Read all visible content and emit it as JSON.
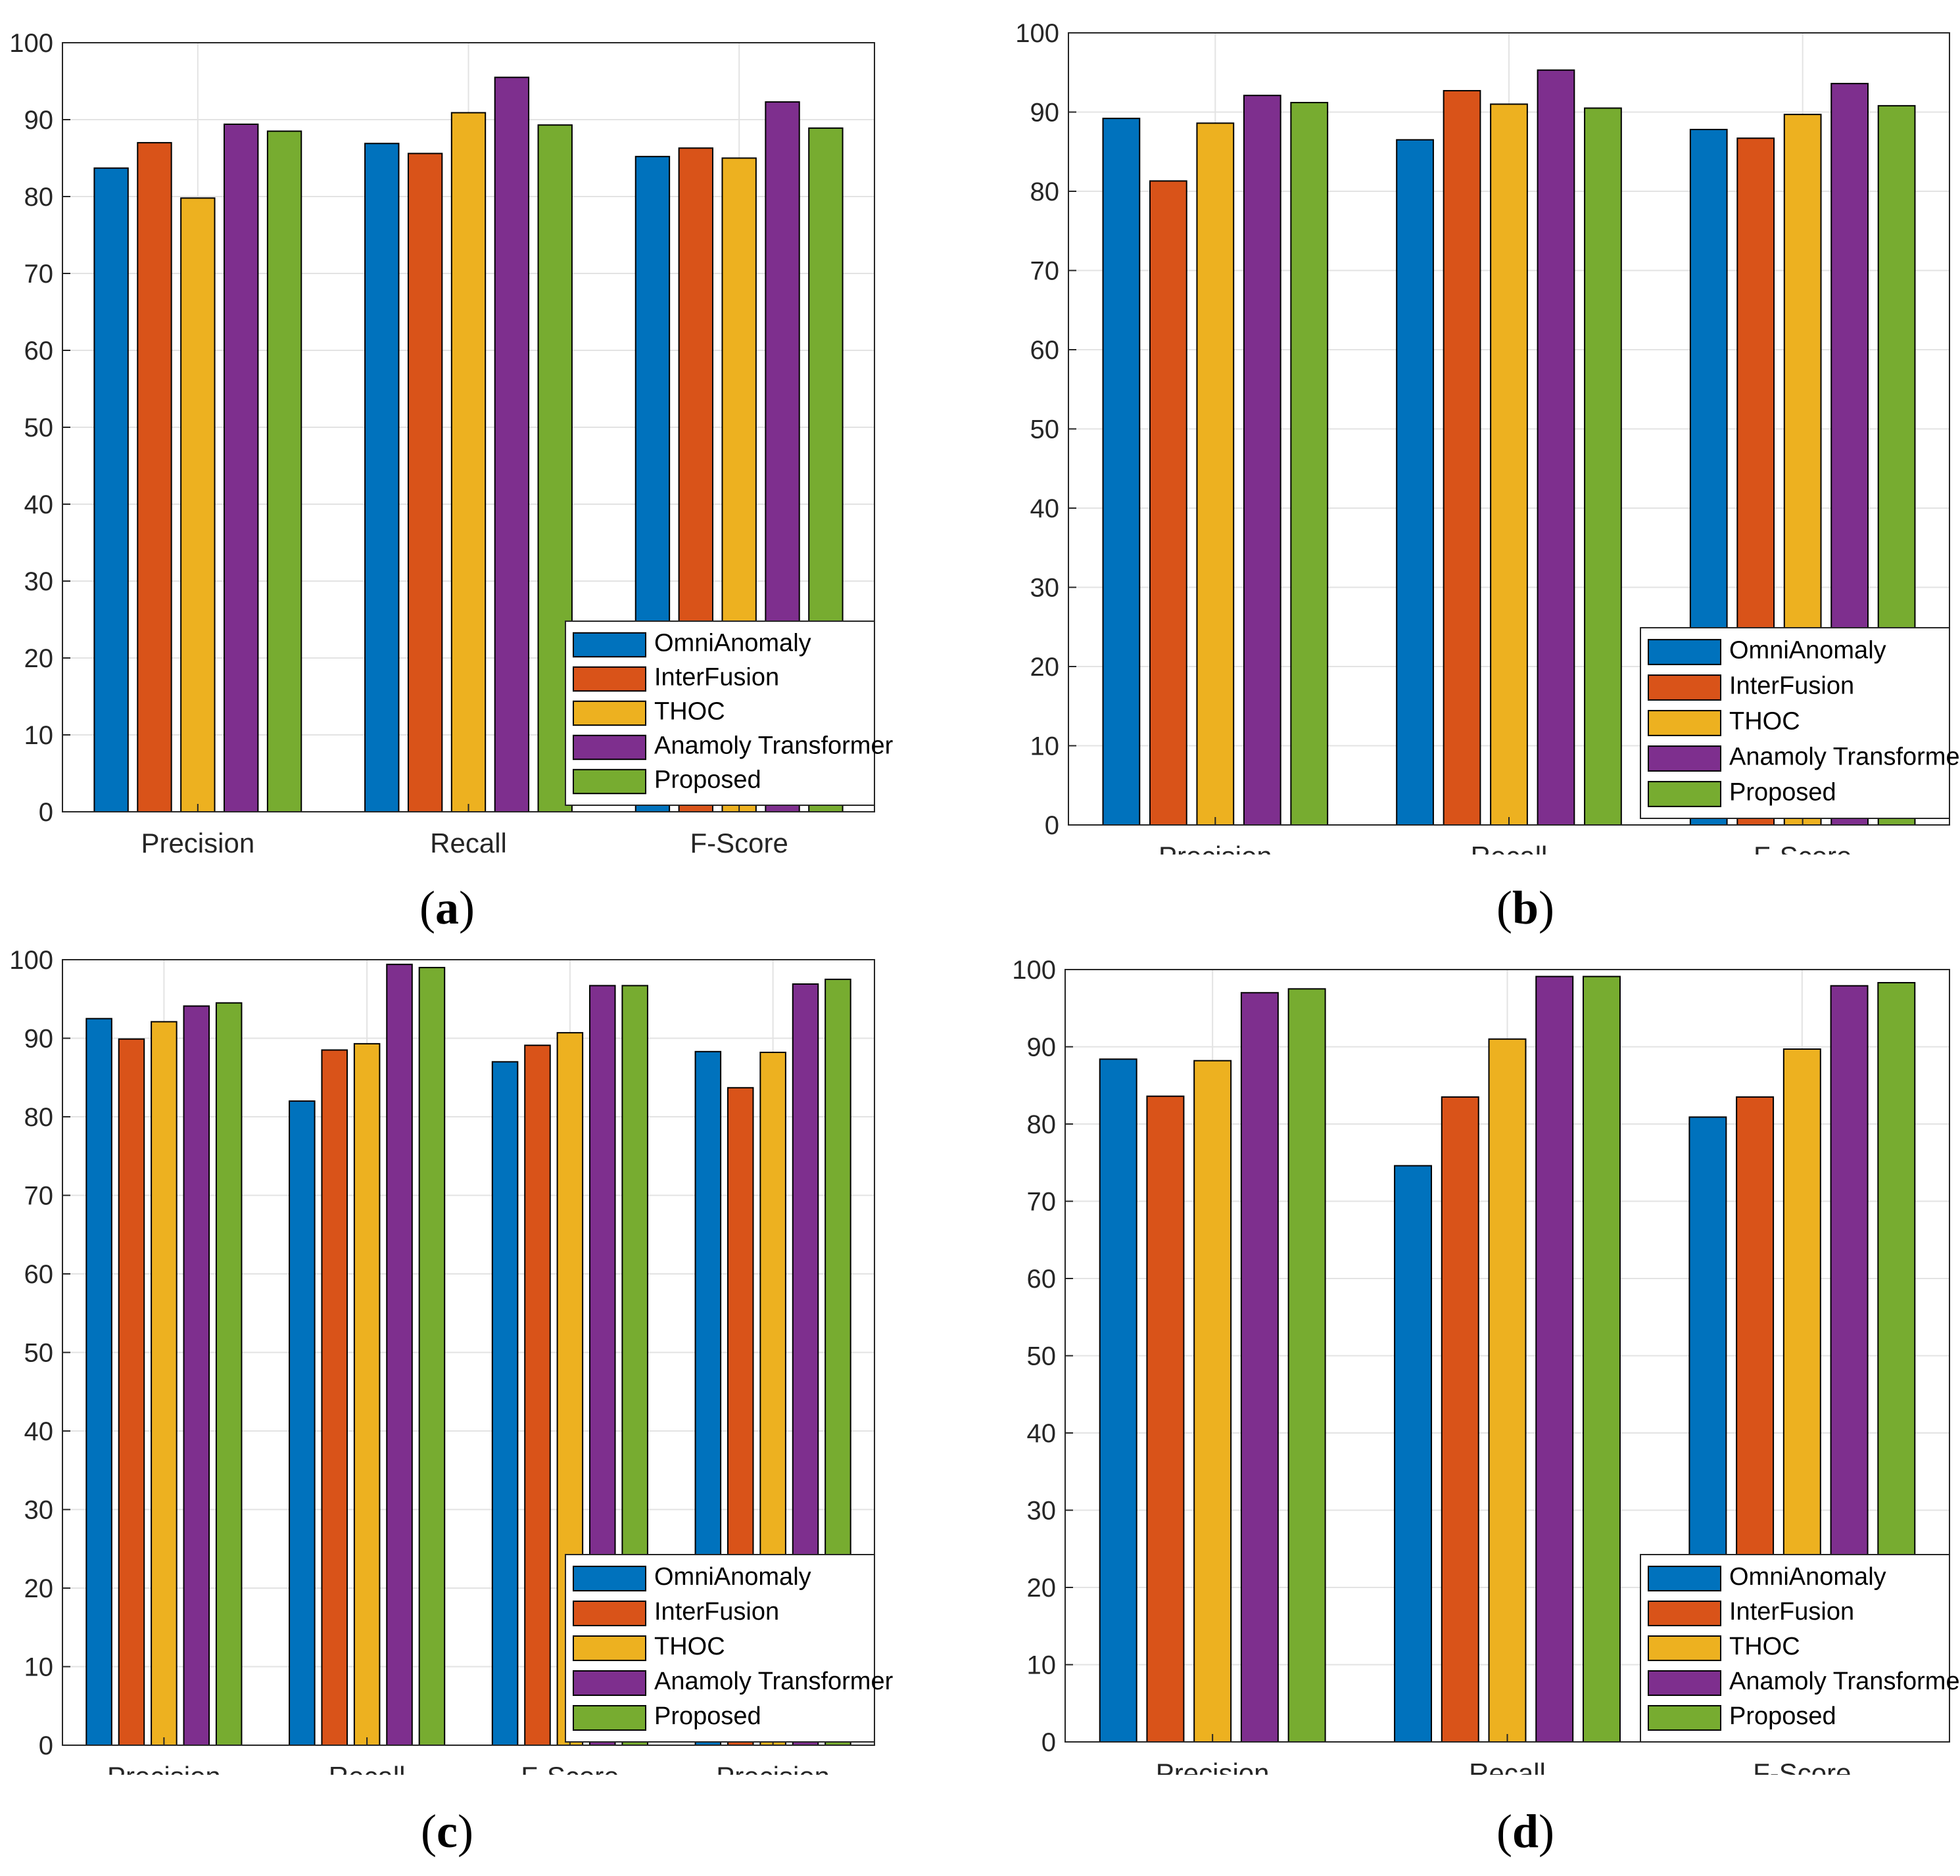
{
  "legend_entries": [
    "OmniAnomaly",
    "InterFusion",
    "THOC",
    "Anamoly Transformer",
    "Proposed"
  ],
  "colors": {
    "OmniAnomaly": "#0072BD",
    "InterFusion": "#D95319",
    "THOC": "#EDB120",
    "Anamoly Transformer": "#7E2F8E",
    "Proposed": "#77AC30"
  },
  "chart_data": [
    {
      "panel_label": "a",
      "type": "bar",
      "title": "",
      "xlabel": "",
      "ylabel": "",
      "ylim": [
        0,
        100
      ],
      "yticks": [
        0,
        10,
        20,
        30,
        40,
        50,
        60,
        70,
        80,
        90,
        100
      ],
      "grid": true,
      "legend_position": "bottom-right",
      "categories": [
        "Precision",
        "Recall",
        "F-Score"
      ],
      "series": [
        {
          "name": "OmniAnomaly",
          "values": [
            83.7,
            86.9,
            85.2
          ]
        },
        {
          "name": "InterFusion",
          "values": [
            87.0,
            85.6,
            86.3
          ]
        },
        {
          "name": "THOC",
          "values": [
            79.8,
            90.9,
            85.0
          ]
        },
        {
          "name": "Anamoly Transformer",
          "values": [
            89.4,
            95.5,
            92.3
          ]
        },
        {
          "name": "Proposed",
          "values": [
            88.5,
            89.3,
            88.9
          ]
        }
      ]
    },
    {
      "panel_label": "b",
      "type": "bar",
      "title": "",
      "xlabel": "",
      "ylabel": "",
      "ylim": [
        0,
        100
      ],
      "yticks": [
        0,
        10,
        20,
        30,
        40,
        50,
        60,
        70,
        80,
        90,
        100
      ],
      "grid": true,
      "legend_position": "bottom-right",
      "categories": [
        "Precision",
        "Recall",
        "F-Score"
      ],
      "series": [
        {
          "name": "OmniAnomaly",
          "values": [
            89.2,
            86.5,
            87.8
          ]
        },
        {
          "name": "InterFusion",
          "values": [
            81.3,
            92.7,
            86.7
          ]
        },
        {
          "name": "THOC",
          "values": [
            88.6,
            91.0,
            89.7
          ]
        },
        {
          "name": "Anamoly Transformer",
          "values": [
            92.1,
            95.3,
            93.6
          ]
        },
        {
          "name": "Proposed",
          "values": [
            91.2,
            90.5,
            90.8
          ]
        }
      ]
    },
    {
      "panel_label": "c",
      "type": "bar",
      "title": "",
      "xlabel": "",
      "ylabel": "",
      "ylim": [
        0,
        100
      ],
      "yticks": [
        0,
        10,
        20,
        30,
        40,
        50,
        60,
        70,
        80,
        90,
        100
      ],
      "grid": true,
      "legend_position": "bottom-right",
      "categories": [
        "Precision",
        "Recall",
        "F-Score",
        "Precision"
      ],
      "series": [
        {
          "name": "OmniAnomaly",
          "values": [
            92.5,
            82.0,
            87.0,
            88.3
          ]
        },
        {
          "name": "InterFusion",
          "values": [
            89.9,
            88.5,
            89.1,
            83.7
          ]
        },
        {
          "name": "THOC",
          "values": [
            92.1,
            89.3,
            90.7,
            88.2
          ]
        },
        {
          "name": "Anamoly Transformer",
          "values": [
            94.1,
            99.4,
            96.7,
            96.9
          ]
        },
        {
          "name": "Proposed",
          "values": [
            94.5,
            99.0,
            96.7,
            97.5
          ]
        }
      ]
    },
    {
      "panel_label": "d",
      "type": "bar",
      "title": "",
      "xlabel": "",
      "ylabel": "",
      "ylim": [
        0,
        100
      ],
      "yticks": [
        0,
        10,
        20,
        30,
        40,
        50,
        60,
        70,
        80,
        90,
        100
      ],
      "grid": true,
      "legend_position": "bottom-right",
      "categories": [
        "Precision",
        "Recall",
        "F-Score"
      ],
      "series": [
        {
          "name": "OmniAnomaly",
          "values": [
            88.4,
            74.6,
            80.9
          ]
        },
        {
          "name": "InterFusion",
          "values": [
            83.6,
            83.5,
            83.5
          ]
        },
        {
          "name": "THOC",
          "values": [
            88.2,
            91.0,
            89.7
          ]
        },
        {
          "name": "Anamoly Transformer",
          "values": [
            97.0,
            99.1,
            97.9
          ]
        },
        {
          "name": "Proposed",
          "values": [
            97.5,
            99.1,
            98.3
          ]
        }
      ]
    }
  ]
}
